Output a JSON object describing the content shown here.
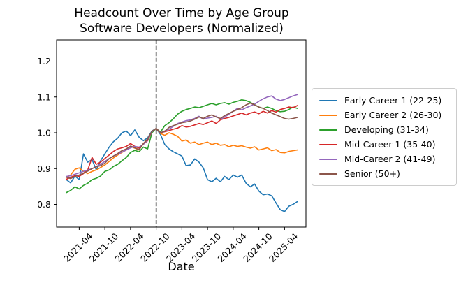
{
  "title": {
    "line1": "Headcount Over Time by Age Group",
    "line2": "Software Developers (Normalized)"
  },
  "chart_data": {
    "type": "line",
    "title": "Headcount Over Time by Age Group — Software Developers (Normalized)",
    "xlabel": "Date",
    "ylabel": "",
    "x_start": "2021-01",
    "x_freq": "monthly",
    "n_points": 55,
    "x_tick_labels": [
      "2021-04",
      "2021-10",
      "2022-04",
      "2022-10",
      "2023-04",
      "2023-10",
      "2024-04",
      "2024-10",
      "2025-04"
    ],
    "y_ticks": [
      0.8,
      0.9,
      1.0,
      1.1,
      1.2
    ],
    "y_tick_labels": [
      "0.8",
      "0.9",
      "1.0",
      "1.1",
      "1.2"
    ],
    "ylim": [
      0.737,
      1.26
    ],
    "grid": false,
    "legend_position": "outside-right",
    "annotations": [
      {
        "type": "vline",
        "x": "2022-10",
        "linestyle": "dashed",
        "color": "#000000"
      }
    ],
    "series": [
      {
        "name": "Early Career 1 (22-25)",
        "color": "#1f77b4",
        "values": [
          0.869,
          0.86,
          0.879,
          0.869,
          0.941,
          0.918,
          0.925,
          0.896,
          0.922,
          0.941,
          0.96,
          0.975,
          0.985,
          1.0,
          1.005,
          0.992,
          1.008,
          0.988,
          0.978,
          0.986,
          1.005,
          1.012,
          0.995,
          0.967,
          0.955,
          0.947,
          0.941,
          0.935,
          0.908,
          0.91,
          0.927,
          0.918,
          0.902,
          0.869,
          0.863,
          0.873,
          0.863,
          0.878,
          0.869,
          0.882,
          0.876,
          0.882,
          0.859,
          0.849,
          0.857,
          0.837,
          0.827,
          0.829,
          0.824,
          0.804,
          0.785,
          0.78,
          0.795,
          0.8,
          0.808
        ]
      },
      {
        "name": "Early Career 2 (26-30)",
        "color": "#ff7f0e",
        "values": [
          0.875,
          0.882,
          0.898,
          0.902,
          0.892,
          0.886,
          0.892,
          0.896,
          0.903,
          0.91,
          0.92,
          0.93,
          0.938,
          0.945,
          0.952,
          0.962,
          0.957,
          0.952,
          0.97,
          0.983,
          1.003,
          1.012,
          0.998,
          0.993,
          1.0,
          0.996,
          0.99,
          0.977,
          0.98,
          0.971,
          0.974,
          0.967,
          0.971,
          0.974,
          0.967,
          0.971,
          0.965,
          0.967,
          0.961,
          0.965,
          0.962,
          0.964,
          0.96,
          0.957,
          0.961,
          0.952,
          0.955,
          0.958,
          0.95,
          0.953,
          0.945,
          0.944,
          0.948,
          0.95,
          0.952
        ]
      },
      {
        "name": "Developing (31-34)",
        "color": "#2ca02c",
        "values": [
          0.833,
          0.839,
          0.849,
          0.843,
          0.853,
          0.859,
          0.869,
          0.873,
          0.879,
          0.892,
          0.896,
          0.906,
          0.912,
          0.922,
          0.931,
          0.945,
          0.951,
          0.947,
          0.96,
          0.955,
          1.0,
          1.012,
          1.002,
          1.02,
          1.028,
          1.039,
          1.052,
          1.06,
          1.065,
          1.068,
          1.072,
          1.07,
          1.074,
          1.078,
          1.082,
          1.078,
          1.082,
          1.084,
          1.08,
          1.085,
          1.088,
          1.092,
          1.09,
          1.085,
          1.078,
          1.072,
          1.068,
          1.072,
          1.068,
          1.062,
          1.059,
          1.06,
          1.065,
          1.072,
          1.068
        ]
      },
      {
        "name": "Mid-Career 1 (35-40)",
        "color": "#d62728",
        "values": [
          0.87,
          0.876,
          0.88,
          0.878,
          0.886,
          0.896,
          0.931,
          0.912,
          0.918,
          0.928,
          0.938,
          0.948,
          0.955,
          0.958,
          0.962,
          0.97,
          0.962,
          0.957,
          0.968,
          0.978,
          1.003,
          1.012,
          1.0,
          1.003,
          1.006,
          1.01,
          1.013,
          1.02,
          1.016,
          1.018,
          1.022,
          1.026,
          1.023,
          1.028,
          1.033,
          1.026,
          1.036,
          1.04,
          1.043,
          1.047,
          1.051,
          1.055,
          1.05,
          1.055,
          1.058,
          1.053,
          1.06,
          1.055,
          1.062,
          1.058,
          1.065,
          1.068,
          1.072,
          1.07,
          1.076
        ]
      },
      {
        "name": "Mid-Career 2 (41-49)",
        "color": "#9467bd",
        "values": [
          0.878,
          0.88,
          0.884,
          0.888,
          0.892,
          0.896,
          0.9,
          0.906,
          0.912,
          0.92,
          0.928,
          0.935,
          0.94,
          0.946,
          0.952,
          0.958,
          0.962,
          0.96,
          0.968,
          0.98,
          1.003,
          1.012,
          1.0,
          1.005,
          1.01,
          1.018,
          1.026,
          1.03,
          1.034,
          1.036,
          1.04,
          1.046,
          1.038,
          1.041,
          1.043,
          1.046,
          1.038,
          1.044,
          1.052,
          1.06,
          1.068,
          1.064,
          1.07,
          1.075,
          1.08,
          1.088,
          1.095,
          1.1,
          1.103,
          1.094,
          1.09,
          1.093,
          1.098,
          1.103,
          1.107
        ]
      },
      {
        "name": "Senior (50+)",
        "color": "#8c564b",
        "values": [
          0.876,
          0.872,
          0.878,
          0.882,
          0.887,
          0.893,
          0.9,
          0.905,
          0.908,
          0.915,
          0.928,
          0.935,
          0.942,
          0.95,
          0.955,
          0.963,
          0.958,
          0.953,
          0.97,
          0.982,
          1.004,
          1.012,
          1.0,
          1.004,
          1.015,
          1.02,
          1.024,
          1.028,
          1.03,
          1.033,
          1.038,
          1.044,
          1.04,
          1.046,
          1.05,
          1.044,
          1.04,
          1.048,
          1.054,
          1.06,
          1.065,
          1.07,
          1.078,
          1.083,
          1.078,
          1.072,
          1.068,
          1.062,
          1.055,
          1.05,
          1.045,
          1.04,
          1.038,
          1.04,
          1.043
        ]
      }
    ]
  }
}
